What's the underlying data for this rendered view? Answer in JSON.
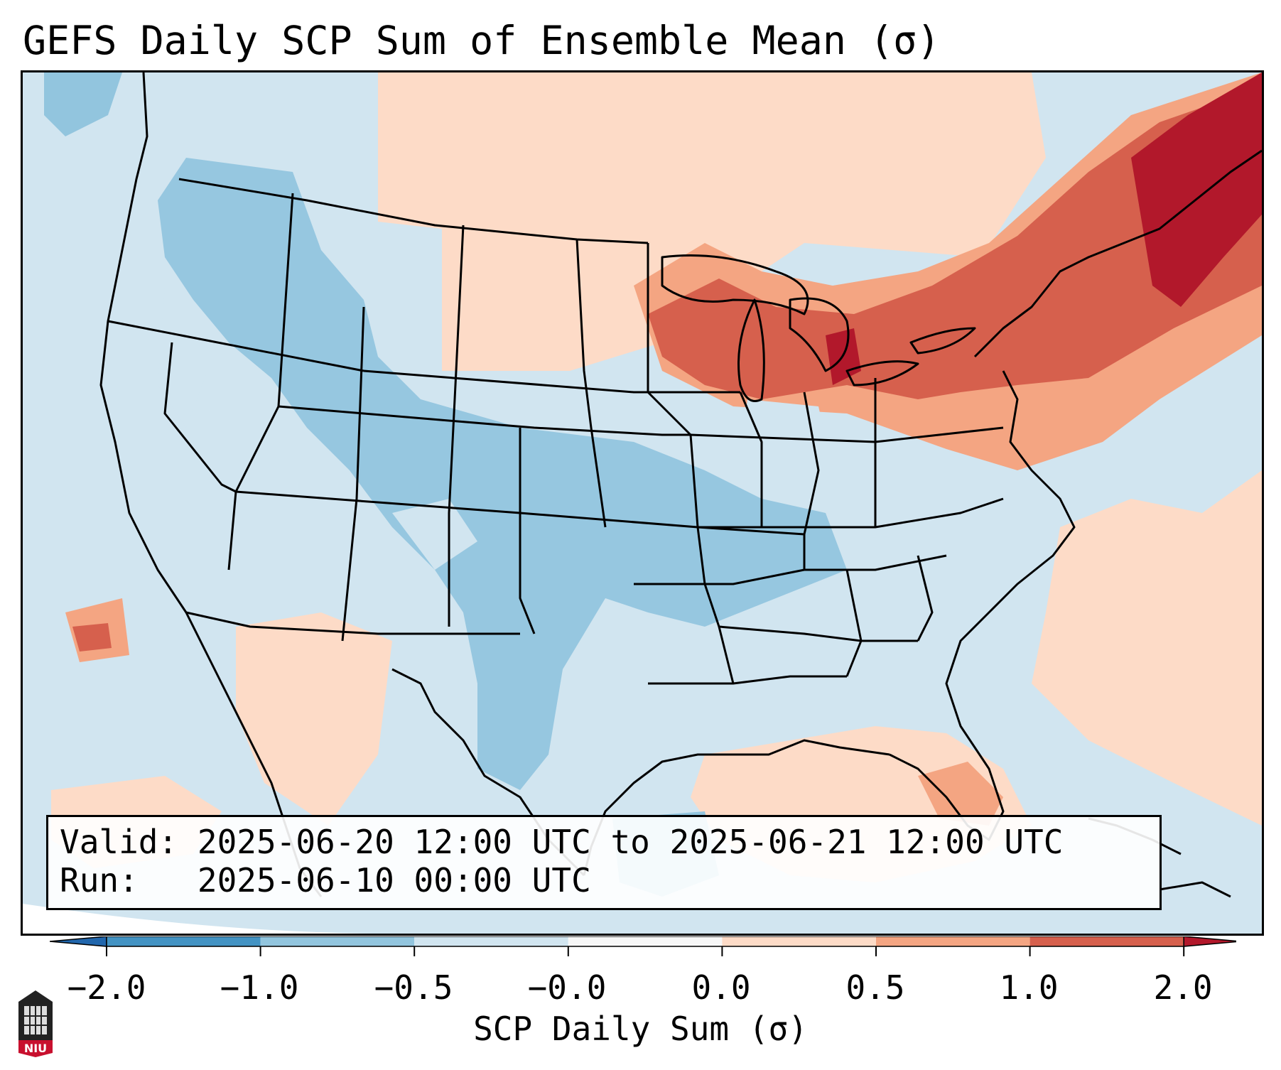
{
  "title": "GEFS Daily SCP Sum of Ensemble Mean (σ)",
  "info": {
    "valid_label": "Valid:",
    "valid_value": "2025-06-20 12:00 UTC to 2025-06-21 12:00 UTC",
    "run_label": "Run:",
    "run_value": "2025-06-10 00:00 UTC"
  },
  "colorbar": {
    "label": "SCP Daily Sum (σ)",
    "ticks": [
      "−2.0",
      "−1.0",
      "−0.5",
      "−0.0",
      "0.0",
      "0.5",
      "1.0",
      "2.0"
    ],
    "segments": [
      {
        "from": -2.0,
        "to": -1.0,
        "color": "#4393c3"
      },
      {
        "from": -1.0,
        "to": -0.5,
        "color": "#92c5de"
      },
      {
        "from": -0.5,
        "to": -0.0,
        "color": "#d1e5f0"
      },
      {
        "from": -0.0,
        "to": 0.0,
        "color": "#f7f7f7"
      },
      {
        "from": 0.0,
        "to": 0.5,
        "color": "#fddbc7"
      },
      {
        "from": 0.5,
        "to": 1.0,
        "color": "#f4a582"
      },
      {
        "from": 1.0,
        "to": 2.0,
        "color": "#d6604d"
      }
    ],
    "under_color": "#2166ac",
    "over_color": "#b2182b"
  },
  "map": {
    "region": "Continental United States",
    "background_color": "#d1e5f0",
    "anomaly_areas": [
      {
        "name": "great-lakes-northeast",
        "level": "1.0 to 2.0",
        "color": "#d6604d"
      },
      {
        "name": "new-england",
        "level": "above 2.0",
        "color": "#b2182b"
      },
      {
        "name": "northern-plains",
        "level": "0.0 to 0.5",
        "color": "#fddbc7"
      },
      {
        "name": "central-plains-texas",
        "level": "-1.0 to -0.5",
        "color": "#92c5de"
      },
      {
        "name": "gulf-of-mexico",
        "level": "0.0 to 0.5",
        "color": "#fddbc7"
      },
      {
        "name": "florida",
        "level": "0.5 to 1.0",
        "color": "#f4a582"
      },
      {
        "name": "atlantic-ocean",
        "level": "0.0 to 0.5",
        "color": "#fddbc7"
      },
      {
        "name": "pacific-offshore",
        "level": "0.5 to 1.0",
        "color": "#f4a582"
      }
    ]
  },
  "logo": {
    "text": "NIU"
  }
}
